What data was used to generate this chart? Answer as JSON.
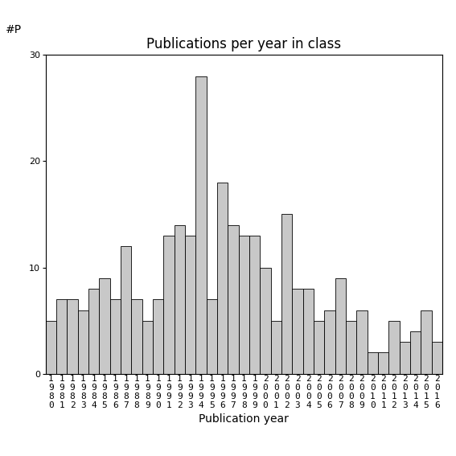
{
  "title": "Publications per year in class",
  "xlabel": "Publication year",
  "ylabel": "#P",
  "years": [
    1980,
    1981,
    1982,
    1983,
    1984,
    1985,
    1986,
    1987,
    1988,
    1989,
    1990,
    1991,
    1992,
    1993,
    1994,
    1995,
    1996,
    1997,
    1998,
    1999,
    2000,
    2001,
    2002,
    2003,
    2004,
    2005,
    2006,
    2007,
    2008,
    2009,
    2010,
    2011,
    2012,
    2013,
    2014,
    2015,
    2016
  ],
  "values": [
    5,
    7,
    7,
    6,
    8,
    9,
    7,
    12,
    7,
    5,
    7,
    13,
    14,
    13,
    28,
    7,
    18,
    14,
    13,
    13,
    10,
    5,
    15,
    8,
    8,
    5,
    6,
    9,
    5,
    6,
    2,
    2,
    5,
    3,
    4,
    6,
    3
  ],
  "bar_color": "#c8c8c8",
  "bar_edgecolor": "#000000",
  "ylim": [
    0,
    30
  ],
  "yticks": [
    0,
    10,
    20,
    30
  ],
  "figsize": [
    5.67,
    5.67
  ],
  "dpi": 100,
  "title_fontsize": 12,
  "axis_label_fontsize": 10,
  "tick_fontsize": 8,
  "background_color": "#ffffff"
}
